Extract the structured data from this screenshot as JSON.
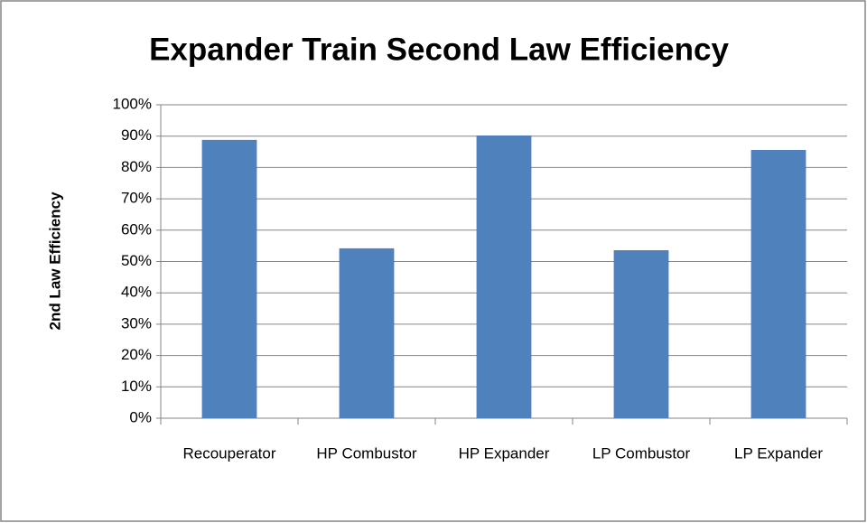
{
  "chart_data": {
    "type": "bar",
    "title": "Expander Train Second Law Efficiency",
    "y_label": "2nd Law Efficiency",
    "categories": [
      "Recouperator",
      "HP Combustor",
      "HP Expander",
      "LP Combustor",
      "LP Expander"
    ],
    "values": [
      88.8,
      54.2,
      90.2,
      53.6,
      85.6
    ],
    "color": "#4f81bd",
    "ylim": [
      0,
      100
    ],
    "yticks": [
      {
        "value": 0,
        "label": "0%"
      },
      {
        "value": 10,
        "label": "10%"
      },
      {
        "value": 20,
        "label": "20%"
      },
      {
        "value": 30,
        "label": "30%"
      },
      {
        "value": 40,
        "label": "40%"
      },
      {
        "value": 50,
        "label": "50%"
      },
      {
        "value": 60,
        "label": "60%"
      },
      {
        "value": 70,
        "label": "70%"
      },
      {
        "value": 80,
        "label": "80%"
      },
      {
        "value": 90,
        "label": "90%"
      },
      {
        "value": 100,
        "label": "100%"
      }
    ],
    "grid": true
  }
}
